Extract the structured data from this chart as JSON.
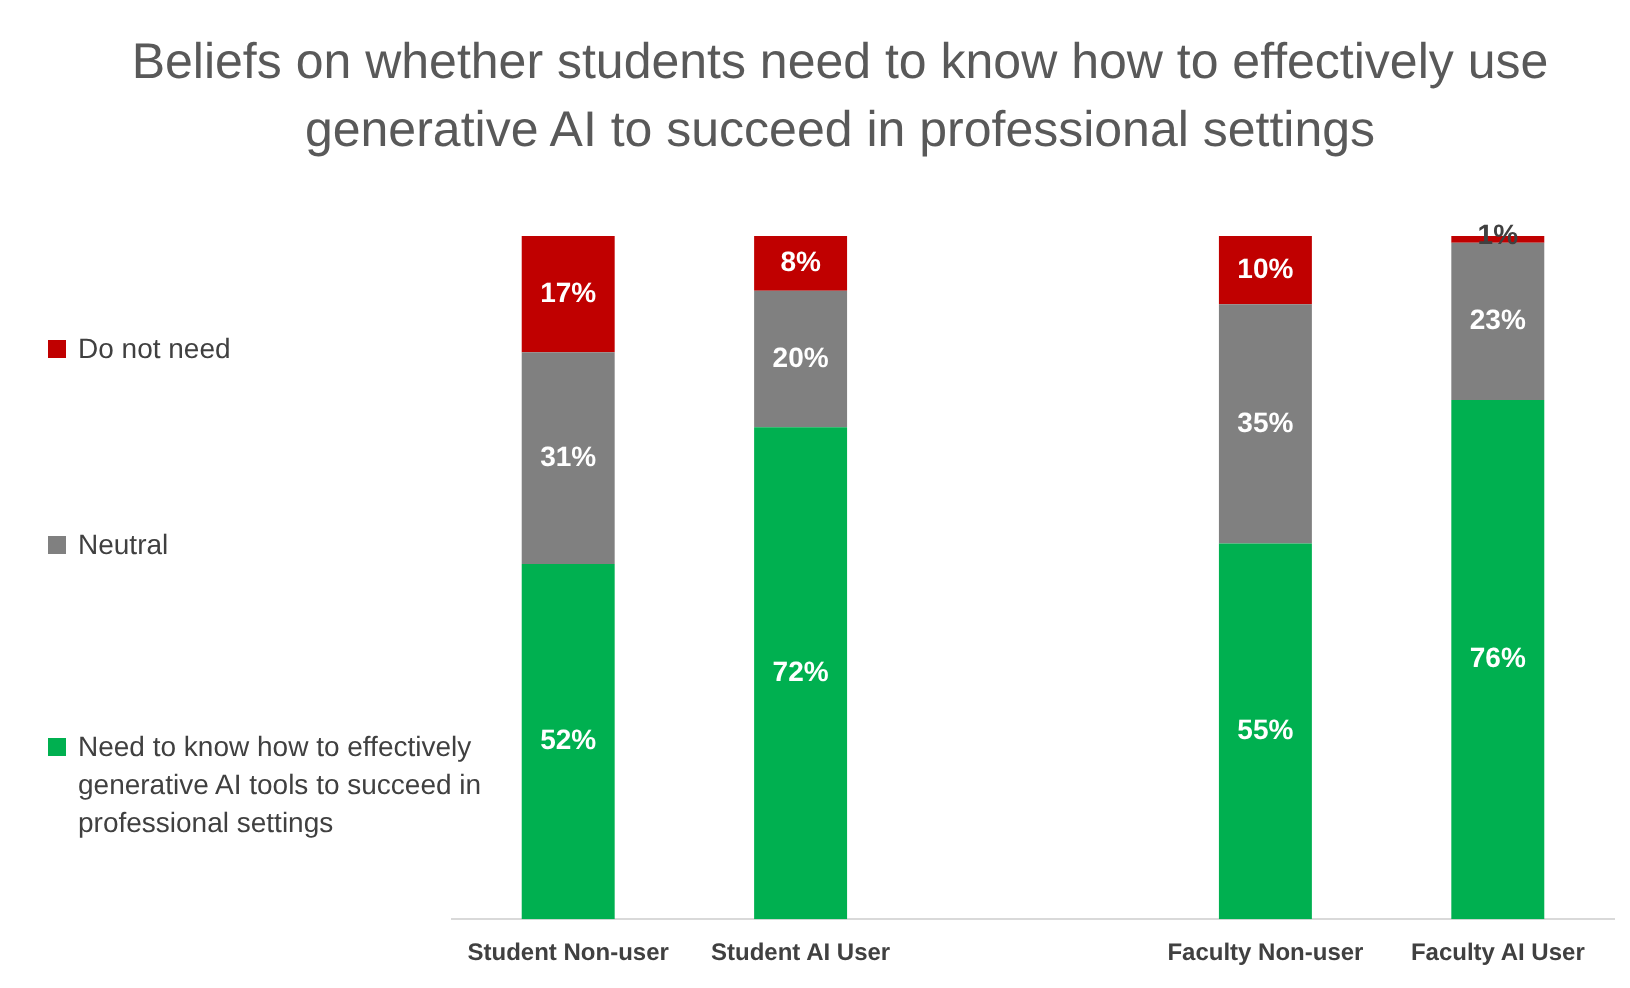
{
  "chart_data": {
    "type": "bar",
    "stacked": true,
    "title": "Beliefs on whether students need to know how to effectively use generative AI to succeed in professional settings",
    "categories": [
      "Student Non-user",
      "Student AI User",
      null,
      "Faculty Non-user",
      "Faculty AI User"
    ],
    "series": [
      {
        "name": "Need to know how to effectively generative AI tools to succeed in professional settings",
        "color": "#00b050",
        "values": [
          52,
          72,
          null,
          55,
          76
        ],
        "value_labels": [
          "52%",
          "72%",
          null,
          "55%",
          "76%"
        ]
      },
      {
        "name": "Neutral",
        "color": "#808080",
        "values": [
          31,
          20,
          null,
          35,
          23
        ],
        "value_labels": [
          "31%",
          "20%",
          null,
          "35%",
          "23%"
        ]
      },
      {
        "name": "Do not need",
        "color": "#c00000",
        "values": [
          17,
          8,
          null,
          10,
          1
        ],
        "value_labels": [
          "17%",
          "8%",
          null,
          "10%",
          "1%"
        ]
      }
    ],
    "legend": "left",
    "grid": false
  }
}
